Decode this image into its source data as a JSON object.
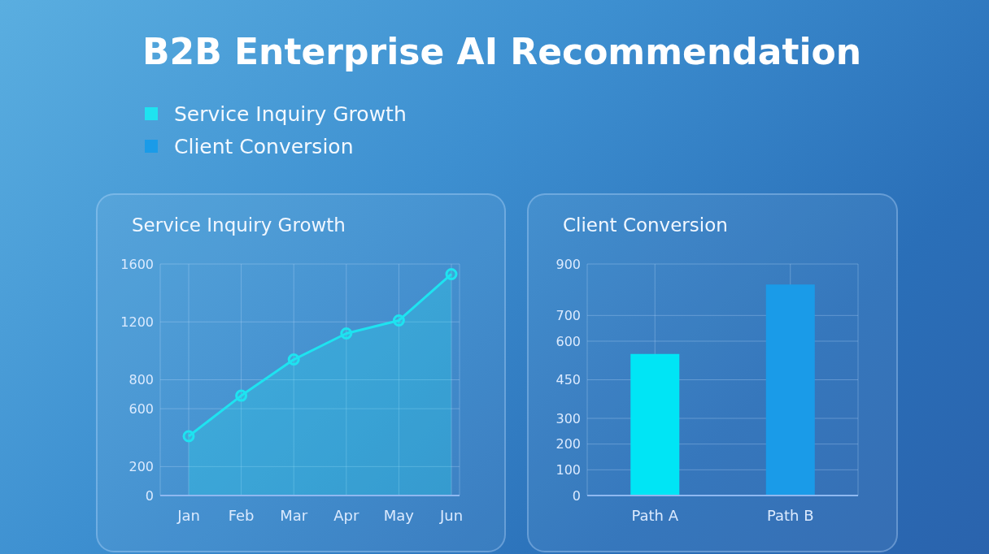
{
  "chart_data": [
    {
      "type": "area",
      "title": "B2B Enterprise AI Recommendation",
      "subtitle": "Service Inquiry Growth",
      "categories": [
        "Jan",
        "Feb",
        "Mar",
        "Apr",
        "May",
        "Jun"
      ],
      "series": [
        {
          "name": "Service Inquiry Growth",
          "color": "#1ee3f0",
          "values": [
            410,
            690,
            940,
            1120,
            1210,
            1530
          ]
        }
      ],
      "ylim": [
        0,
        1600
      ],
      "yticks": [
        0,
        200,
        600,
        800,
        1200,
        1600
      ],
      "grid": true,
      "marker": "circle",
      "legend": "top left"
    },
    {
      "type": "bar",
      "subtitle": "Client Conversion",
      "categories": [
        "Path A",
        "Path B"
      ],
      "series": [
        {
          "name": "Client Conversion",
          "color": "#1a9be8",
          "colors": [
            "#00e5f5",
            "#1a9be8"
          ],
          "values": [
            550,
            820
          ]
        }
      ],
      "ylim": [
        0,
        900
      ],
      "yticks": [
        0,
        100,
        200,
        300,
        450,
        600,
        700,
        900
      ],
      "grid": true,
      "legend": "top left"
    }
  ]
}
